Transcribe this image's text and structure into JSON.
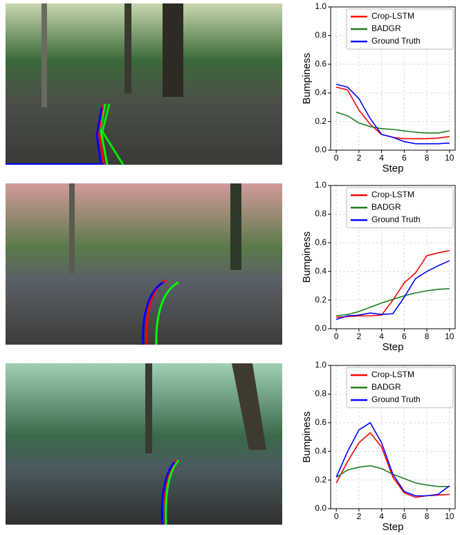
{
  "chart_data": [
    {
      "type": "line",
      "x": [
        0,
        1,
        2,
        3,
        4,
        5,
        6,
        7,
        8,
        9,
        10
      ],
      "x_label": "Step",
      "y_label": "Bumpiness",
      "xlim": [
        -0.5,
        10.5
      ],
      "ylim": [
        0,
        1
      ],
      "xticks": [
        0,
        2,
        4,
        6,
        8,
        10
      ],
      "yticks": [
        {
          "value": 0,
          "label": "0.0"
        },
        0.2,
        0.4,
        0.6,
        0.8,
        {
          "value": 1,
          "label": "1.0"
        }
      ],
      "grid": true,
      "legend": "upper right",
      "series": [
        {
          "name": "Crop-LSTM",
          "color": "#ff0000",
          "values": [
            0.44,
            0.42,
            0.28,
            0.18,
            0.11,
            0.09,
            0.08,
            0.08,
            0.08,
            0.085,
            0.095
          ]
        },
        {
          "name": "BADGR",
          "color": "#1a7f1a",
          "values": [
            0.265,
            0.24,
            0.19,
            0.165,
            0.15,
            0.145,
            0.135,
            0.125,
            0.12,
            0.12,
            0.135
          ]
        },
        {
          "name": "Ground Truth",
          "color": "#0000ff",
          "values": [
            0.46,
            0.44,
            0.36,
            0.22,
            0.11,
            0.09,
            0.06,
            0.045,
            0.045,
            0.045,
            0.05
          ]
        }
      ]
    },
    {
      "type": "line",
      "x": [
        0,
        1,
        2,
        3,
        4,
        5,
        6,
        7,
        8,
        9,
        10
      ],
      "x_label": "Step",
      "y_label": "Bumpiness",
      "xlim": [
        -0.5,
        10.5
      ],
      "ylim": [
        0,
        1
      ],
      "xticks": [
        0,
        2,
        4,
        6,
        8,
        10
      ],
      "yticks": [
        {
          "value": 0,
          "label": "0.0"
        },
        0.2,
        0.4,
        0.6,
        0.8,
        {
          "value": 1,
          "label": "1.0"
        }
      ],
      "grid": true,
      "legend": "upper right",
      "series": [
        {
          "name": "Crop-LSTM",
          "color": "#ff0000",
          "values": [
            0.08,
            0.085,
            0.09,
            0.09,
            0.095,
            0.2,
            0.32,
            0.39,
            0.51,
            0.53,
            0.545
          ]
        },
        {
          "name": "BADGR",
          "color": "#1a7f1a",
          "values": [
            0.09,
            0.1,
            0.12,
            0.15,
            0.18,
            0.205,
            0.23,
            0.25,
            0.265,
            0.275,
            0.28
          ]
        },
        {
          "name": "Ground Truth",
          "color": "#0000ff",
          "values": [
            0.065,
            0.09,
            0.095,
            0.11,
            0.1,
            0.105,
            0.22,
            0.35,
            0.4,
            0.44,
            0.475
          ]
        }
      ]
    },
    {
      "type": "line",
      "x": [
        0,
        1,
        2,
        3,
        4,
        5,
        6,
        7,
        8,
        9,
        10
      ],
      "x_label": "Step",
      "y_label": "Bumpiness",
      "xlim": [
        -0.5,
        10.5
      ],
      "ylim": [
        0,
        1
      ],
      "xticks": [
        0,
        2,
        4,
        6,
        8,
        10
      ],
      "yticks": [
        {
          "value": 0,
          "label": "0.0"
        },
        0.2,
        0.4,
        0.6,
        0.8,
        {
          "value": 1,
          "label": "1.0"
        }
      ],
      "grid": true,
      "legend": "upper right",
      "series": [
        {
          "name": "Crop-LSTM",
          "color": "#ff0000",
          "values": [
            0.18,
            0.33,
            0.46,
            0.53,
            0.43,
            0.22,
            0.11,
            0.08,
            0.09,
            0.095,
            0.1
          ]
        },
        {
          "name": "BADGR",
          "color": "#1a7f1a",
          "values": [
            0.22,
            0.27,
            0.29,
            0.3,
            0.28,
            0.24,
            0.21,
            0.18,
            0.165,
            0.155,
            0.155
          ]
        },
        {
          "name": "Ground Truth",
          "color": "#0000ff",
          "values": [
            0.22,
            0.4,
            0.55,
            0.6,
            0.46,
            0.24,
            0.12,
            0.09,
            0.09,
            0.1,
            0.16
          ]
        }
      ]
    }
  ]
}
